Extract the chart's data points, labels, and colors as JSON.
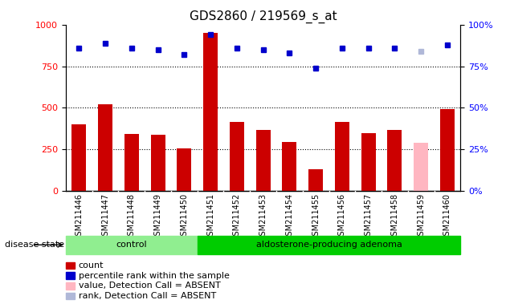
{
  "title": "GDS2860 / 219569_s_at",
  "samples": [
    "GSM211446",
    "GSM211447",
    "GSM211448",
    "GSM211449",
    "GSM211450",
    "GSM211451",
    "GSM211452",
    "GSM211453",
    "GSM211454",
    "GSM211455",
    "GSM211456",
    "GSM211457",
    "GSM211458",
    "GSM211459",
    "GSM211460"
  ],
  "counts": [
    400,
    520,
    345,
    340,
    255,
    950,
    415,
    365,
    295,
    130,
    415,
    350,
    365,
    null,
    490
  ],
  "counts_absent": [
    null,
    null,
    null,
    null,
    null,
    null,
    null,
    null,
    null,
    null,
    null,
    null,
    null,
    290,
    null
  ],
  "percentile_ranks": [
    86,
    89,
    86,
    85,
    82,
    94,
    86,
    85,
    83,
    74,
    86,
    86,
    86,
    null,
    88
  ],
  "percentile_ranks_absent": [
    null,
    null,
    null,
    null,
    null,
    null,
    null,
    null,
    null,
    null,
    null,
    null,
    null,
    84,
    null
  ],
  "n_control": 5,
  "n_adenoma": 10,
  "ylim_left": [
    0,
    1000
  ],
  "ylim_right": [
    0,
    100
  ],
  "yticks_left": [
    0,
    250,
    500,
    750,
    1000
  ],
  "yticks_right": [
    0,
    25,
    50,
    75,
    100
  ],
  "bar_color": "#cc0000",
  "bar_absent_color": "#ffb6c1",
  "dot_color": "#0000cc",
  "dot_absent_color": "#b0b8d8",
  "control_bg": "#90ee90",
  "adenoma_bg": "#00cc00",
  "tick_bg": "#c8c8c8",
  "title_fontsize": 11,
  "label_fontsize": 8,
  "legend_fontsize": 8,
  "disease_state_label": "disease state",
  "control_label": "control",
  "adenoma_label": "aldosterone-producing adenoma",
  "legend_items": [
    {
      "label": "count",
      "color": "#cc0000"
    },
    {
      "label": "percentile rank within the sample",
      "color": "#0000cc"
    },
    {
      "label": "value, Detection Call = ABSENT",
      "color": "#ffb6c1"
    },
    {
      "label": "rank, Detection Call = ABSENT",
      "color": "#b0b8d8"
    }
  ]
}
